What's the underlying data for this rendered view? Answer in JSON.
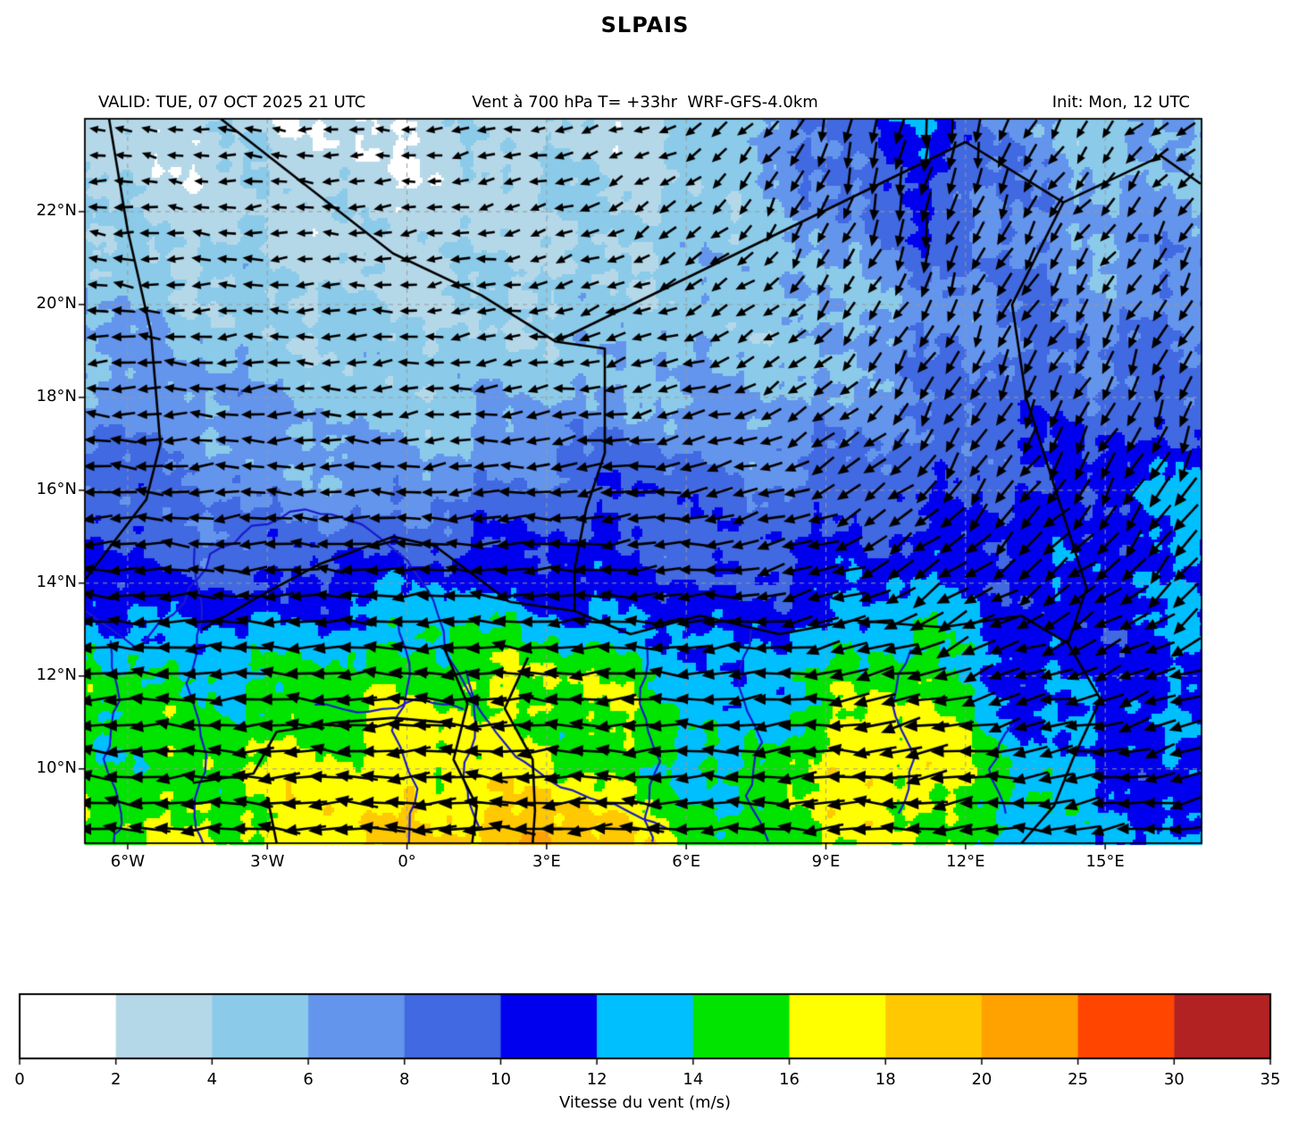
{
  "title": "SLPAIS",
  "header": {
    "valid": "VALID: TUE, 07 OCT 2025 21 UTC",
    "field": "Vent à 700 hPa T= +33hr  WRF-GFS-4.0km",
    "init": "Init: Mon, 12 UTC"
  },
  "chart_data": {
    "type": "heatmap",
    "title": "SLPAIS",
    "subtitle_left": "VALID: TUE, 07 OCT 2025 21 UTC",
    "subtitle_center": "Vent à 700 hPa T= +33hr  WRF-GFS-4.0km",
    "subtitle_right": "Init: Mon, 12 UTC",
    "projection": "lon-lat",
    "lon_range": [
      -6.92,
      17.07
    ],
    "lat_range": [
      8.4,
      24.0
    ],
    "xticks": {
      "labels": [
        "6°W",
        "3°W",
        "0°",
        "3°E",
        "6°E",
        "9°E",
        "12°E",
        "15°E"
      ],
      "lons": [
        -6,
        -3,
        0,
        3,
        6,
        9,
        12,
        15
      ]
    },
    "yticks": {
      "labels": [
        "10°N",
        "12°N",
        "14°N",
        "16°N",
        "18°N",
        "20°N",
        "22°N"
      ],
      "lats": [
        10,
        12,
        14,
        16,
        18,
        20,
        22
      ]
    },
    "grid_on": true,
    "colorbar": {
      "label": "Vitesse du vent (m/s)",
      "levels": [
        0,
        2,
        4,
        6,
        8,
        10,
        12,
        14,
        16,
        18,
        20,
        25,
        30,
        35
      ],
      "colors": [
        "#ffffff",
        "#b5d8e9",
        "#8bcbe9",
        "#6495ed",
        "#4169e1",
        "#0000ee",
        "#00bfff",
        "#00e400",
        "#ffff00",
        "#ffc800",
        "#ffa200",
        "#ff4500",
        "#b22222"
      ]
    },
    "grid": {
      "lons": [
        -7,
        -5,
        -3,
        -1,
        1,
        3,
        5,
        7,
        9,
        11,
        13,
        15,
        17
      ],
      "lats": [
        24,
        22,
        20,
        18,
        16,
        14,
        12,
        10,
        8
      ],
      "speed": [
        [
          3,
          3,
          3,
          2,
          3,
          4,
          3,
          5,
          9,
          12,
          7,
          5,
          6
        ],
        [
          4,
          3,
          4,
          3,
          3,
          4,
          4,
          5,
          7,
          10,
          8,
          6,
          7
        ],
        [
          6,
          5,
          4,
          4,
          4,
          4,
          5,
          5,
          5,
          7,
          8,
          7,
          8
        ],
        [
          7,
          7,
          6,
          5,
          5,
          6,
          6,
          6,
          6,
          8,
          9,
          9,
          8
        ],
        [
          10,
          8,
          7,
          7,
          7,
          9,
          10,
          8,
          9,
          9,
          10,
          11,
          13
        ],
        [
          11,
          10,
          10,
          11,
          12,
          11,
          10,
          10,
          11,
          12,
          11,
          11,
          12
        ],
        [
          15,
          14,
          14,
          15,
          16,
          16,
          15,
          12,
          14,
          16,
          11,
          11,
          12
        ],
        [
          15,
          15,
          16,
          17,
          17,
          16,
          15,
          13,
          17,
          18,
          14,
          12,
          11
        ],
        [
          15,
          16,
          17,
          18,
          19,
          22,
          18,
          15,
          16,
          15,
          14,
          12,
          12
        ]
      ],
      "u": [
        [
          -0.95,
          -0.95,
          -0.9,
          -0.95,
          -0.9,
          -0.85,
          -0.8,
          -0.6,
          -0.3,
          -0.05,
          -0.3,
          -0.5,
          -0.7
        ],
        [
          -0.95,
          -0.95,
          -0.95,
          -0.9,
          -0.9,
          -0.85,
          -0.7,
          -0.5,
          -0.3,
          -0.15,
          -0.4,
          -0.5,
          -0.45
        ],
        [
          -1,
          -1,
          -0.95,
          -0.9,
          -0.9,
          -0.85,
          -0.8,
          -0.7,
          -0.5,
          -0.35,
          -0.4,
          -0.4,
          -0.4
        ],
        [
          -1,
          -1,
          -1,
          -0.95,
          -0.9,
          -0.9,
          -0.85,
          -0.8,
          -0.6,
          -0.45,
          -0.4,
          -0.35,
          -0.35
        ],
        [
          -1,
          -1,
          -1,
          -1,
          -0.95,
          -0.95,
          -0.9,
          -0.9,
          -0.75,
          -0.55,
          -0.5,
          -0.45,
          -0.4
        ],
        [
          -1,
          -1,
          -1,
          -1,
          -1,
          -1,
          -0.95,
          -0.95,
          -0.85,
          -0.7,
          -0.7,
          -0.65,
          -0.6
        ],
        [
          -1,
          -1,
          -1,
          -1,
          -1,
          -1,
          -1,
          -1,
          -0.95,
          -0.85,
          -0.85,
          -0.85,
          -0.85
        ],
        [
          -1,
          -1,
          -1,
          -1,
          -1,
          -1,
          -1,
          -1,
          -1,
          -0.95,
          -0.95,
          -0.95,
          -0.95
        ],
        [
          -1,
          -1,
          -1,
          -1,
          -1,
          -1,
          -1,
          -1,
          -1,
          -1,
          -1,
          -1,
          -1
        ]
      ],
      "v": [
        [
          0.1,
          0.15,
          0.1,
          0,
          -0.1,
          -0.15,
          -0.25,
          -0.5,
          -0.8,
          -0.95,
          -0.8,
          -0.6,
          -0.4
        ],
        [
          0.1,
          0.05,
          0,
          -0.05,
          -0.15,
          -0.3,
          -0.45,
          -0.6,
          -0.8,
          -0.9,
          -0.7,
          -0.6,
          -0.65
        ],
        [
          0.05,
          0,
          0,
          -0.05,
          -0.1,
          -0.2,
          -0.3,
          -0.45,
          -0.6,
          -0.75,
          -0.7,
          -0.7,
          -0.7
        ],
        [
          0,
          0,
          0,
          -0.05,
          -0.1,
          -0.15,
          -0.2,
          -0.3,
          -0.5,
          -0.75,
          -0.8,
          -0.8,
          -0.8
        ],
        [
          0,
          0,
          0,
          0,
          -0.05,
          -0.1,
          -0.1,
          -0.2,
          -0.35,
          -0.6,
          -0.7,
          -0.7,
          -0.75
        ],
        [
          0,
          0,
          0,
          0,
          0,
          0,
          -0.05,
          -0.1,
          -0.25,
          -0.45,
          -0.5,
          -0.55,
          -0.6
        ],
        [
          0,
          0,
          0,
          0,
          0,
          0,
          0,
          -0.05,
          -0.1,
          -0.25,
          -0.3,
          -0.3,
          -0.35
        ],
        [
          0.05,
          0,
          0,
          0,
          0,
          0,
          0,
          0,
          -0.05,
          -0.1,
          -0.1,
          -0.15,
          -0.2
        ],
        [
          0.05,
          0.05,
          0,
          0,
          0,
          0,
          0,
          0,
          0,
          0,
          -0.05,
          -0.1,
          -0.1
        ]
      ]
    },
    "borders": [
      [
        [
          -6.4,
          24
        ],
        [
          -6.0,
          21.6
        ],
        [
          -5.5,
          19.4
        ],
        [
          -5.3,
          17.0
        ],
        [
          -5.6,
          15.8
        ],
        [
          -6.9,
          14.1
        ]
      ],
      [
        [
          -4.0,
          24
        ],
        [
          -0.3,
          21.1
        ],
        [
          1.6,
          20.2
        ],
        [
          3.2,
          19.2
        ]
      ],
      [
        [
          3.2,
          19.2
        ],
        [
          4.25,
          19.05
        ],
        [
          4.25,
          16.8
        ],
        [
          3.85,
          15.6
        ],
        [
          3.6,
          14.3
        ],
        [
          3.6,
          13.4
        ]
      ],
      [
        [
          3.2,
          19.2
        ],
        [
          12.0,
          23.5
        ]
      ],
      [
        [
          12.0,
          23.5
        ],
        [
          14.1,
          22.2
        ],
        [
          16.2,
          23.2
        ],
        [
          17.05,
          22.6
        ]
      ],
      [
        [
          14.1,
          22.2
        ],
        [
          13.0,
          20.0
        ],
        [
          13.3,
          18.0
        ],
        [
          14.0,
          15.8
        ],
        [
          14.6,
          13.9
        ],
        [
          14.2,
          12.7
        ],
        [
          14.9,
          11.5
        ]
      ],
      [
        [
          2.2,
          13.6
        ],
        [
          3.6,
          13.4
        ],
        [
          4.8,
          12.9
        ],
        [
          6.3,
          13.3
        ],
        [
          8.0,
          12.9
        ],
        [
          9.6,
          13.2
        ],
        [
          11.5,
          13.05
        ],
        [
          13.2,
          13.3
        ],
        [
          14.2,
          12.7
        ]
      ],
      [
        [
          0.8,
          12.6
        ],
        [
          1.3,
          11.4
        ],
        [
          1.0,
          10.2
        ],
        [
          1.5,
          9.2
        ],
        [
          1.4,
          8.4
        ]
      ],
      [
        [
          2.6,
          12.4
        ],
        [
          2.1,
          11.3
        ],
        [
          2.7,
          10.2
        ],
        [
          2.75,
          9.1
        ],
        [
          2.7,
          8.4
        ]
      ],
      [
        [
          -4.4,
          13.0
        ],
        [
          -3.2,
          13.7
        ],
        [
          -1.9,
          14.4
        ],
        [
          -0.3,
          15.0
        ],
        [
          0.6,
          14.8
        ],
        [
          2.2,
          13.6
        ]
      ],
      [
        [
          -4.6,
          9.7
        ],
        [
          -3.3,
          9.9
        ],
        [
          -2.8,
          10.8
        ],
        [
          -1.5,
          11.0
        ],
        [
          -0.3,
          11.1
        ],
        [
          0.8,
          11.0
        ]
      ],
      [
        [
          14.9,
          11.5
        ],
        [
          14.3,
          10.2
        ],
        [
          13.9,
          9.2
        ],
        [
          13.2,
          8.4
        ]
      ],
      [
        [
          -3.0,
          9.4
        ],
        [
          -2.8,
          8.4
        ]
      ]
    ],
    "rivers": [
      [
        [
          -6.9,
          13.4
        ],
        [
          -5.8,
          12.6
        ],
        [
          -4.8,
          13.6
        ],
        [
          -4.2,
          14.6
        ],
        [
          -3.3,
          15.2
        ],
        [
          -2.2,
          15.6
        ],
        [
          -1.0,
          15.3
        ],
        [
          0.0,
          14.5
        ],
        [
          0.6,
          13.6
        ],
        [
          0.9,
          12.4
        ],
        [
          1.6,
          11.2
        ],
        [
          2.3,
          10.3
        ],
        [
          3.3,
          9.6
        ],
        [
          4.5,
          9.2
        ],
        [
          5.6,
          8.7
        ]
      ],
      [
        [
          -6.4,
          12.8
        ],
        [
          -6.2,
          11.5
        ],
        [
          -6.5,
          10.2
        ],
        [
          -6.1,
          9.0
        ],
        [
          -6.3,
          8.4
        ]
      ],
      [
        [
          -4.6,
          14.8
        ],
        [
          -4.4,
          13.2
        ],
        [
          -4.7,
          11.8
        ],
        [
          -4.3,
          10.3
        ],
        [
          -4.6,
          9.0
        ],
        [
          -4.4,
          8.4
        ]
      ],
      [
        [
          -0.2,
          13.2
        ],
        [
          0.1,
          12.0
        ],
        [
          -0.3,
          10.8
        ],
        [
          0.2,
          9.6
        ],
        [
          0.0,
          8.4
        ]
      ],
      [
        [
          1.3,
          12.1
        ],
        [
          1.5,
          11.0
        ],
        [
          1.2,
          9.8
        ],
        [
          1.5,
          8.8
        ]
      ],
      [
        [
          5.2,
          12.6
        ],
        [
          5.0,
          11.4
        ],
        [
          5.4,
          10.2
        ],
        [
          5.1,
          9.0
        ],
        [
          5.3,
          8.4
        ]
      ],
      [
        [
          7.4,
          13.0
        ],
        [
          7.1,
          11.8
        ],
        [
          7.6,
          10.6
        ],
        [
          7.3,
          9.4
        ],
        [
          7.8,
          8.4
        ]
      ],
      [
        [
          10.8,
          12.6
        ],
        [
          10.4,
          11.4
        ],
        [
          10.9,
          10.2
        ],
        [
          10.6,
          9.0
        ]
      ],
      [
        [
          13.0,
          11.0
        ],
        [
          12.5,
          10.0
        ],
        [
          12.9,
          9.0
        ]
      ],
      [
        [
          -2.0,
          11.4
        ],
        [
          -0.8,
          11.2
        ],
        [
          0.3,
          11.5
        ],
        [
          1.2,
          11.3
        ]
      ]
    ],
    "styles": {
      "gridline_color": "#999999",
      "border_color": "#000000",
      "river_color": "#1a1acc",
      "arrow_color": "#000000",
      "frame_color": "#000000"
    },
    "arrow": {
      "spacing": 29,
      "len_base": 12,
      "len_scale": 2.2,
      "len_max": 55
    }
  }
}
